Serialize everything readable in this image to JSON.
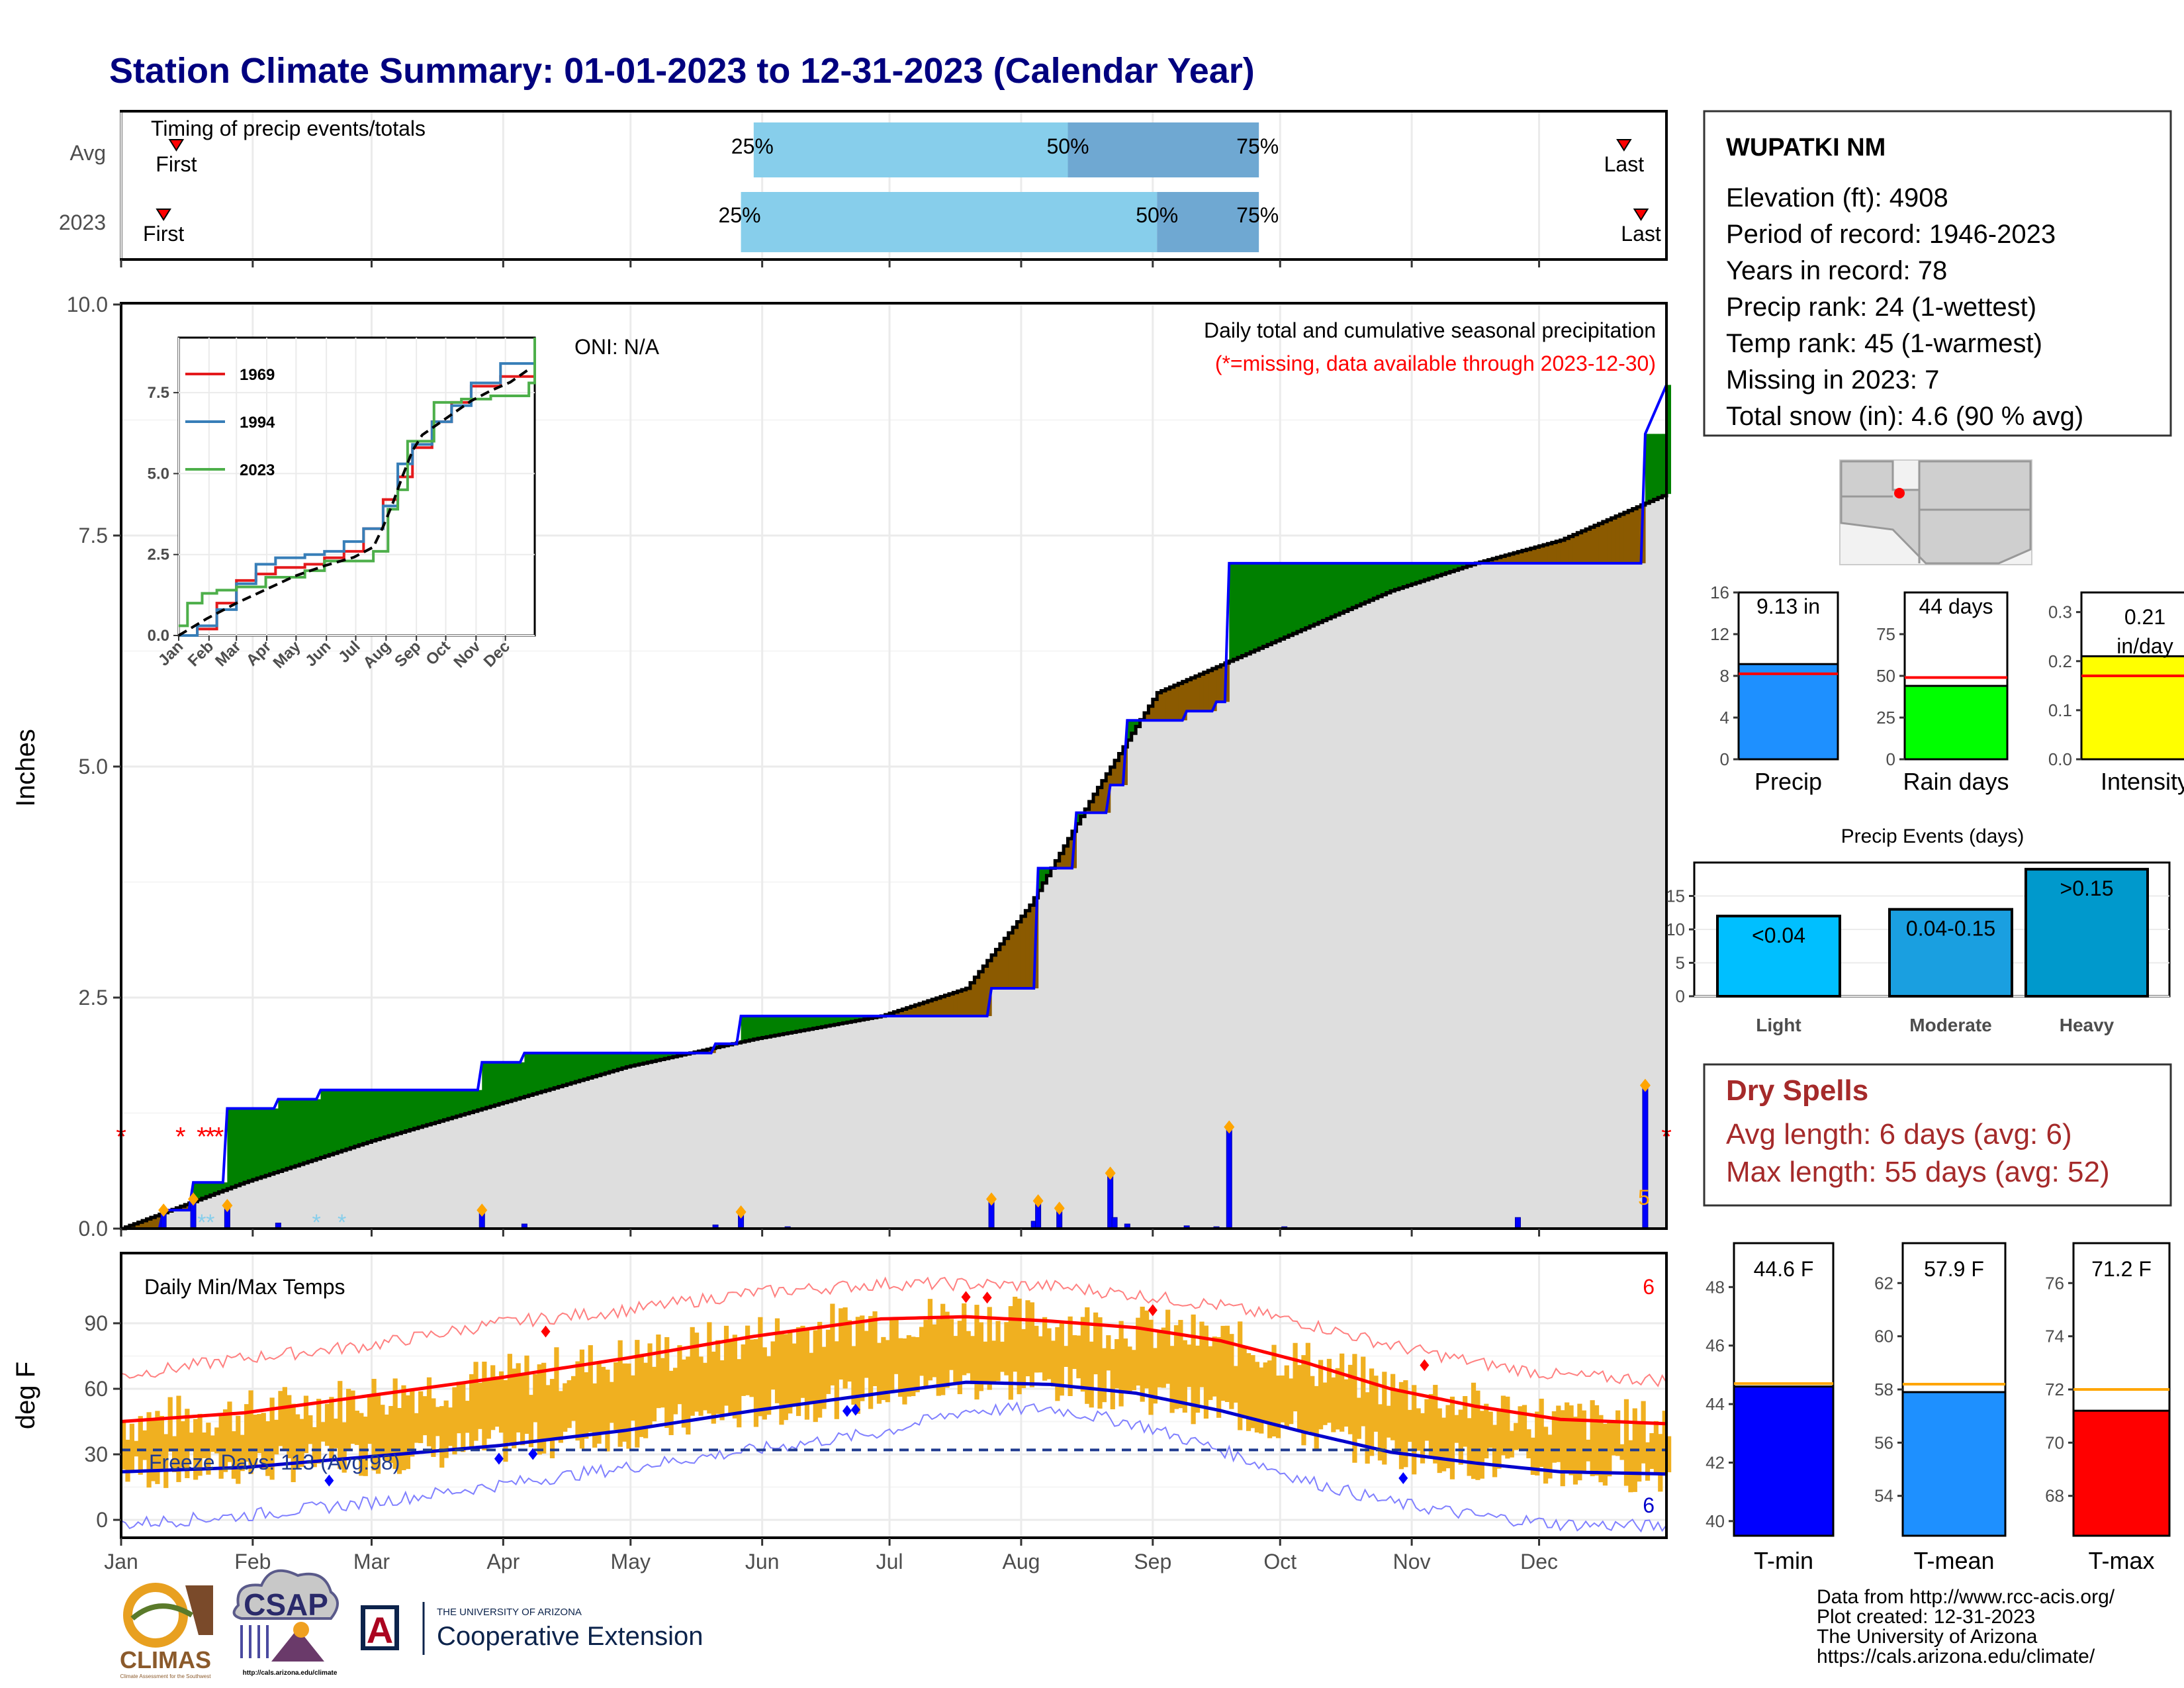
{
  "title": "Station Climate Summary: 01-01-2023 to 12-31-2023 (Calendar Year)",
  "colors": {
    "title": "#00007f",
    "accumulated_fill": "#dedede",
    "above_avg": "#008000",
    "below_avg": "#8b5a00",
    "cumulative_line": "#0000ff",
    "daily_bars": "#0000ff",
    "temp_bars": "#f0b020",
    "tmax_line": "#ff0000",
    "tmin_line": "#0000cc",
    "precip_bar": "#1e90ff",
    "rain_days_bar": "#00ff00",
    "intensity_bar": "#ffff00",
    "light_bar": "#00bfff",
    "moderate_bar": "#1a9fe0",
    "heavy_bar": "#0099cc",
    "tmin_bar": "#0000ff",
    "tmean_bar": "#1e90ff",
    "tmax_bar": "#ff0000",
    "dry_spell_text": "#a52a2a"
  },
  "timing": {
    "label": "Timing of precip events/totals",
    "row_labels": [
      "Avg",
      "2023"
    ],
    "first_label": "First",
    "last_label": "Last",
    "pct_labels": [
      "25%",
      "50%",
      "75%"
    ],
    "x_axis": "day of year 1-365",
    "rows": [
      {
        "name": "Avg",
        "first": 14,
        "p25": 150,
        "p50": 224,
        "p75": 269,
        "last": 355
      },
      {
        "name": "2023",
        "first": 11,
        "p25": 147,
        "p50": 245,
        "p75": 269,
        "last": 359
      }
    ]
  },
  "precip_panel": {
    "ylabel": "Inches",
    "y_ticks": [
      "0.0",
      "2.5",
      "5.0",
      "7.5",
      "10.0"
    ],
    "oni": "ONI: N/A",
    "subtitle": "Daily total and cumulative seasonal precipitation",
    "missing_note": "(*=missing, data available through 2023-12-30)",
    "snow_count": "5",
    "missing_marker": "*"
  },
  "inset": {
    "y_ticks": [
      "0.0",
      "2.5",
      "5.0",
      "7.5"
    ],
    "months": [
      "Jan",
      "Feb",
      "Mar",
      "Apr",
      "May",
      "Jun",
      "Jul",
      "Aug",
      "Sep",
      "Oct",
      "Nov",
      "Dec"
    ],
    "legend": [
      {
        "name": "1969",
        "color": "#e41a1c"
      },
      {
        "name": "1994",
        "color": "#377eb8"
      },
      {
        "name": "2023",
        "color": "#4daf4a"
      }
    ]
  },
  "temp_panel": {
    "ylabel": "deg F",
    "label": "Daily Min/Max Temps",
    "freeze_label": "Freeze Days: 113 (Avg:98)",
    "y_ticks": [
      "0",
      "30",
      "60",
      "90"
    ],
    "record_high_count": "6",
    "record_low_count": "6"
  },
  "months": [
    "Jan",
    "Feb",
    "Mar",
    "Apr",
    "May",
    "Jun",
    "Jul",
    "Aug",
    "Sep",
    "Oct",
    "Nov",
    "Dec"
  ],
  "station": {
    "name": "WUPATKI NM",
    "lines": [
      "Elevation (ft): 4908",
      "Period of record: 1946-2023",
      "Years in record: 78",
      "Precip rank: 24 (1-wettest)",
      "Temp rank: 45 (1-warmest)",
      "Missing in 2023: 7",
      "Total snow (in): 4.6 (90 % avg)"
    ]
  },
  "summary_bars": [
    {
      "label": "Precip",
      "value_text": "9.13 in",
      "value": 9.13,
      "avg": 8.2,
      "y_max": 16,
      "ticks": [
        "0",
        "4",
        "8",
        "12",
        "16"
      ]
    },
    {
      "label": "Rain days",
      "value_text": "44 days",
      "value": 44,
      "avg": 49,
      "y_max": 100,
      "ticks": [
        "0",
        "25",
        "50",
        "75"
      ]
    },
    {
      "label": "Intensity",
      "value_text": "0.21 in/day",
      "value_text_line1": "0.21",
      "value_text_line2": "in/day",
      "value": 0.21,
      "avg": 0.17,
      "y_max": 0.34,
      "ticks": [
        "0.0",
        "0.1",
        "0.2",
        "0.3"
      ]
    }
  ],
  "precip_events": {
    "title": "Precip Events (days)",
    "ticks": [
      "0",
      "5",
      "10",
      "15"
    ],
    "y_max": 20,
    "bars": [
      {
        "label": "Light",
        "range": "<0.04",
        "value": 12
      },
      {
        "label": "Moderate",
        "range": "0.04-0.15",
        "value": 13
      },
      {
        "label": "Heavy",
        "range": ">0.15",
        "value": 19
      }
    ]
  },
  "dry_spells": {
    "title": "Dry Spells",
    "avg": "Avg length: 6 days (avg: 6)",
    "max": "Max length: 55 days (avg: 52)"
  },
  "temp_bars": [
    {
      "label": "T-min",
      "value_text": "44.6 F",
      "value": 44.6,
      "avg": 44.7,
      "y_min": 39.5,
      "y_max": 49.5,
      "ticks": [
        "40",
        "42",
        "44",
        "46",
        "48"
      ]
    },
    {
      "label": "T-mean",
      "value_text": "57.9 F",
      "value": 57.9,
      "avg": 58.2,
      "y_min": 52.5,
      "y_max": 63.5,
      "ticks": [
        "54",
        "56",
        "58",
        "60",
        "62"
      ]
    },
    {
      "label": "T-max",
      "value_text": "71.2 F",
      "value": 71.2,
      "avg": 72.0,
      "y_min": 66.5,
      "y_max": 77.5,
      "ticks": [
        "68",
        "70",
        "72",
        "74",
        "76"
      ]
    }
  ],
  "footer": {
    "lines": [
      "Data from http://www.rcc-acis.org/",
      "Plot created: 12-31-2023",
      "The University of Arizona",
      "https://cals.arizona.edu/climate/"
    ],
    "logos": {
      "climas": "CLIMAS",
      "climas_sub": "Climate Assessment for the Southwest",
      "csap": "CSAP",
      "csap_url": "http://cals.arizona.edu/climate",
      "ua_small": "THE UNIVERSITY OF ARIZONA",
      "ua_big": "Cooperative Extension",
      "ua_letter": "A"
    }
  },
  "chart_data": [
    {
      "type": "area",
      "title": "Daily total and cumulative seasonal precipitation",
      "ylabel": "Inches",
      "ylim": [
        0,
        10
      ],
      "x_unit": "day of year",
      "series": [
        {
          "name": "2023 cumulative",
          "x": [
            1,
            10,
            11,
            17,
            18,
            25,
            26,
            37,
            38,
            47,
            48,
            60,
            61,
            85,
            86,
            95,
            96,
            140,
            141,
            146,
            147,
            205,
            206,
            216,
            217,
            225,
            226,
            233,
            234,
            237,
            238,
            251,
            252,
            258,
            259,
            261,
            262,
            359,
            360,
            365
          ],
          "y": [
            0,
            0,
            0.2,
            0.2,
            0.5,
            0.5,
            1.3,
            1.3,
            1.4,
            1.4,
            1.5,
            1.5,
            1.5,
            1.5,
            1.8,
            1.8,
            1.9,
            1.9,
            2.0,
            2.0,
            2.3,
            2.3,
            2.6,
            2.6,
            3.9,
            3.9,
            4.5,
            4.5,
            4.8,
            4.8,
            5.5,
            5.5,
            5.6,
            5.6,
            5.7,
            5.7,
            7.2,
            7.2,
            8.6,
            9.13
          ]
        },
        {
          "name": "Average cumulative",
          "x": [
            1,
            30,
            60,
            90,
            120,
            150,
            180,
            200,
            215,
            230,
            245,
            260,
            280,
            300,
            320,
            340,
            365
          ],
          "y": [
            0,
            0.5,
            0.95,
            1.35,
            1.75,
            2.05,
            2.3,
            2.6,
            3.5,
            4.7,
            5.8,
            6.1,
            6.5,
            6.9,
            7.2,
            7.45,
            7.95
          ]
        }
      ],
      "daily_bars": [
        {
          "day": 11,
          "value": 0.2
        },
        {
          "day": 18,
          "value": 0.32
        },
        {
          "day": 26,
          "value": 0.25
        },
        {
          "day": 38,
          "value": 0.06
        },
        {
          "day": 86,
          "value": 0.2
        },
        {
          "day": 96,
          "value": 0.05
        },
        {
          "day": 141,
          "value": 0.04
        },
        {
          "day": 147,
          "value": 0.18
        },
        {
          "day": 158,
          "value": 0.02
        },
        {
          "day": 206,
          "value": 0.32
        },
        {
          "day": 216,
          "value": 0.08
        },
        {
          "day": 217,
          "value": 0.3
        },
        {
          "day": 222,
          "value": 0.22
        },
        {
          "day": 234,
          "value": 0.6
        },
        {
          "day": 235,
          "value": 0.12
        },
        {
          "day": 238,
          "value": 0.05
        },
        {
          "day": 252,
          "value": 0.03
        },
        {
          "day": 259,
          "value": 0.02
        },
        {
          "day": 262,
          "value": 1.1
        },
        {
          "day": 275,
          "value": 0.02
        },
        {
          "day": 330,
          "value": 0.12
        },
        {
          "day": 360,
          "value": 1.55
        }
      ],
      "missing_days": [
        1,
        15,
        20,
        22,
        24,
        365
      ]
    },
    {
      "type": "line",
      "title": "Daily Min/Max Temps",
      "ylabel": "deg F",
      "ylim": [
        -5,
        110
      ],
      "series": [
        {
          "name": "Avg max",
          "x": [
            1,
            30,
            60,
            90,
            120,
            150,
            180,
            200,
            220,
            240,
            260,
            280,
            300,
            320,
            340,
            365
          ],
          "y": [
            45,
            49,
            57,
            65,
            74,
            84,
            92,
            93,
            91,
            88,
            82,
            72,
            60,
            52,
            46,
            44
          ]
        },
        {
          "name": "Avg min",
          "x": [
            1,
            30,
            60,
            90,
            120,
            150,
            180,
            200,
            220,
            240,
            260,
            280,
            300,
            320,
            340,
            365
          ],
          "y": [
            22,
            24,
            29,
            34,
            41,
            50,
            58,
            63,
            62,
            58,
            50,
            40,
            31,
            26,
            22,
            21
          ]
        },
        {
          "name": "Record high",
          "x": [
            1,
            30,
            60,
            90,
            120,
            150,
            180,
            200,
            220,
            240,
            260,
            280,
            300,
            320,
            340,
            365
          ],
          "y": [
            66,
            74,
            80,
            90,
            96,
            104,
            108,
            108,
            107,
            103,
            98,
            90,
            80,
            72,
            66,
            64
          ]
        },
        {
          "name": "Record low",
          "x": [
            1,
            30,
            60,
            90,
            120,
            150,
            180,
            200,
            220,
            240,
            260,
            280,
            300,
            320,
            340,
            365
          ],
          "y": [
            -2,
            2,
            8,
            16,
            24,
            32,
            40,
            50,
            51,
            44,
            32,
            18,
            8,
            2,
            -2,
            -3
          ]
        }
      ],
      "freeze_line": 32
    },
    {
      "type": "bar",
      "categories": [
        "Precip"
      ],
      "values": [
        9.13
      ],
      "ylim": [
        0,
        16
      ]
    },
    {
      "type": "bar",
      "categories": [
        "Rain days"
      ],
      "values": [
        44
      ],
      "ylim": [
        0,
        100
      ]
    },
    {
      "type": "bar",
      "categories": [
        "Intensity"
      ],
      "values": [
        0.21
      ],
      "ylim": [
        0,
        0.34
      ]
    },
    {
      "type": "bar",
      "title": "Precip Events (days)",
      "categories": [
        "Light",
        "Moderate",
        "Heavy"
      ],
      "values": [
        12,
        13,
        19
      ],
      "ylim": [
        0,
        20
      ]
    },
    {
      "type": "bar",
      "categories": [
        "T-min"
      ],
      "values": [
        44.6
      ],
      "ylim": [
        39.5,
        49.5
      ]
    },
    {
      "type": "bar",
      "categories": [
        "T-mean"
      ],
      "values": [
        57.9
      ],
      "ylim": [
        52.5,
        63.5
      ]
    },
    {
      "type": "bar",
      "categories": [
        "T-max"
      ],
      "values": [
        71.2
      ],
      "ylim": [
        66.5,
        77.5
      ]
    }
  ]
}
